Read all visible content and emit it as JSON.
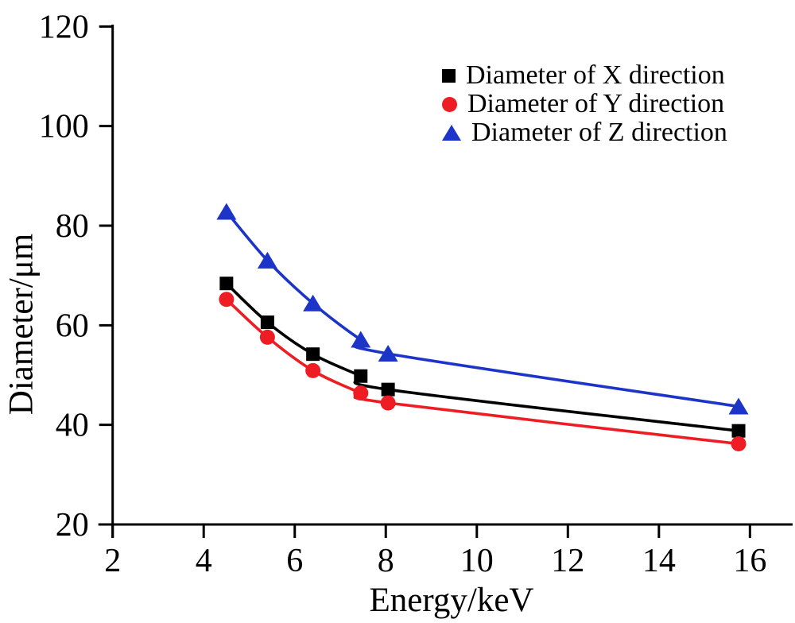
{
  "chart_data": {
    "type": "scatter",
    "title": "",
    "xlabel": "Energy/keV",
    "ylabel": "Diameter/μm",
    "xlim": [
      2,
      17
    ],
    "ylim": [
      20,
      120
    ],
    "xticks": [
      2,
      4,
      6,
      8,
      10,
      12,
      14,
      16
    ],
    "yticks": [
      20,
      40,
      60,
      80,
      100,
      120
    ],
    "grid": false,
    "legend_position": "upper right inside, no frame",
    "line_style": "smooth fitted curves through markers",
    "x": [
      4.5,
      5.4,
      6.4,
      7.45,
      8.05,
      15.75
    ],
    "series": [
      {
        "name": "Diameter of X direction",
        "marker": "square",
        "color": "#000000",
        "values": [
          68.4,
          60.6,
          54.2,
          49.8,
          47.1,
          38.8
        ]
      },
      {
        "name": "Diameter of Y direction",
        "marker": "circle",
        "color": "#ee1c23",
        "values": [
          65.2,
          57.6,
          50.9,
          46.4,
          44.4,
          36.2
        ]
      },
      {
        "name": "Diameter of Z direction",
        "marker": "triangle",
        "color": "#1c34c8",
        "values": [
          82.8,
          73.0,
          64.4,
          57.1,
          54.3,
          43.7
        ]
      }
    ],
    "axis_color": "#000000"
  }
}
